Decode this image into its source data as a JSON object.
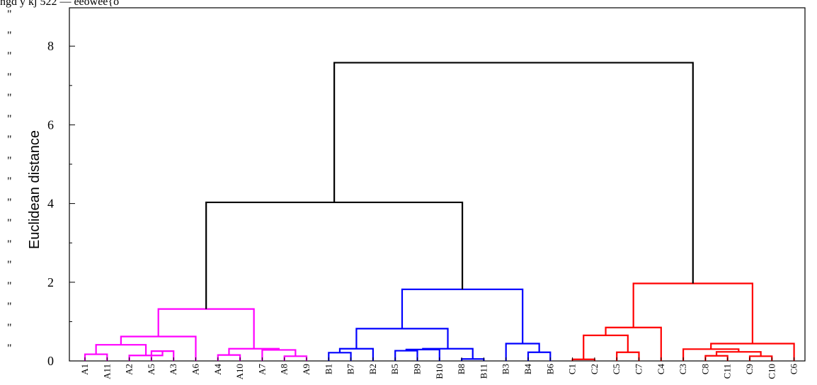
{
  "header_artifact": "ngd y kj 522 — eeowee{o",
  "quote_marks": [
    "\"",
    "\"",
    "\"",
    "\"",
    "\"",
    "\"",
    "\"",
    "\"",
    "\"",
    "\"",
    "\"",
    "\"",
    "\"",
    "\"",
    "\"",
    "\"",
    "\""
  ],
  "chart_data": {
    "type": "dendrogram",
    "ylabel": "Euclidean distance",
    "xlabel": "",
    "ylim": [
      0,
      8.9
    ],
    "yticks": [
      0,
      2,
      4,
      6,
      8
    ],
    "leaves": [
      "A1",
      "A11",
      "A2",
      "A5",
      "A3",
      "A6",
      "A4",
      "A10",
      "A7",
      "A8",
      "A9",
      "B1",
      "B7",
      "B2",
      "B5",
      "B9",
      "B10",
      "B8",
      "B11",
      "B3",
      "B4",
      "B6",
      "C1",
      "C2",
      "C5",
      "C7",
      "C4",
      "C3",
      "C8",
      "C11",
      "C9",
      "C10",
      "C6"
    ],
    "colors": {
      "A": "#ff00ff",
      "B": "#0000ff",
      "C": "#ff0000",
      "root": "#000000"
    },
    "merges": [
      {
        "left": "A1",
        "right": "A11",
        "height": 0.17,
        "color": "A"
      },
      {
        "left": "A5",
        "right": "A3",
        "height": 0.25,
        "color": "A"
      },
      {
        "left": "A2",
        "right": "m2",
        "height": 0.14,
        "color": "A"
      },
      {
        "left": "m1",
        "right": "m3",
        "height": 0.41,
        "color": "A"
      },
      {
        "left": "m4",
        "right": "A6",
        "height": 0.62,
        "color": "A"
      },
      {
        "left": "A4",
        "right": "A10",
        "height": 0.15,
        "color": "A"
      },
      {
        "left": "A8",
        "right": "A9",
        "height": 0.12,
        "color": "A"
      },
      {
        "left": "A7",
        "right": "m7",
        "height": 0.28,
        "color": "A"
      },
      {
        "left": "m6",
        "right": "m8",
        "height": 0.31,
        "color": "A"
      },
      {
        "left": "m5",
        "right": "m9",
        "height": 1.32,
        "color": "A"
      },
      {
        "left": "B1",
        "right": "B7",
        "height": 0.21,
        "color": "B"
      },
      {
        "left": "m11",
        "right": "B2",
        "height": 0.31,
        "color": "B"
      },
      {
        "left": "B5",
        "right": "B9",
        "height": 0.26,
        "color": "B"
      },
      {
        "left": "m13",
        "right": "B10",
        "height": 0.29,
        "color": "B"
      },
      {
        "left": "B8",
        "right": "B11",
        "height": 0.05,
        "color": "B"
      },
      {
        "left": "m14",
        "right": "m15",
        "height": 0.31,
        "color": "B"
      },
      {
        "left": "m12",
        "right": "m16",
        "height": 0.82,
        "color": "B"
      },
      {
        "left": "B4",
        "right": "B6",
        "height": 0.22,
        "color": "B"
      },
      {
        "left": "B3",
        "right": "m18",
        "height": 0.44,
        "color": "B"
      },
      {
        "left": "m17",
        "right": "m19",
        "height": 1.82,
        "color": "B"
      },
      {
        "left": "C1",
        "right": "C2",
        "height": 0.04,
        "color": "C"
      },
      {
        "left": "C5",
        "right": "C7",
        "height": 0.22,
        "color": "C"
      },
      {
        "left": "m21",
        "right": "m22",
        "height": 0.65,
        "color": "C"
      },
      {
        "left": "m23",
        "right": "C4",
        "height": 0.85,
        "color": "C"
      },
      {
        "left": "C8",
        "right": "C11",
        "height": 0.13,
        "color": "C"
      },
      {
        "left": "C9",
        "right": "C10",
        "height": 0.12,
        "color": "C"
      },
      {
        "left": "m25",
        "right": "m26",
        "height": 0.23,
        "color": "C"
      },
      {
        "left": "C3",
        "right": "m27",
        "height": 0.3,
        "color": "C"
      },
      {
        "left": "m28",
        "right": "C6",
        "height": 0.44,
        "color": "C"
      },
      {
        "left": "m24",
        "right": "m29",
        "height": 1.97,
        "color": "C"
      },
      {
        "left": "m10",
        "right": "m20",
        "height": 4.03,
        "color": "root"
      },
      {
        "left": "m31",
        "right": "m30",
        "height": 7.58,
        "color": "root"
      }
    ]
  }
}
